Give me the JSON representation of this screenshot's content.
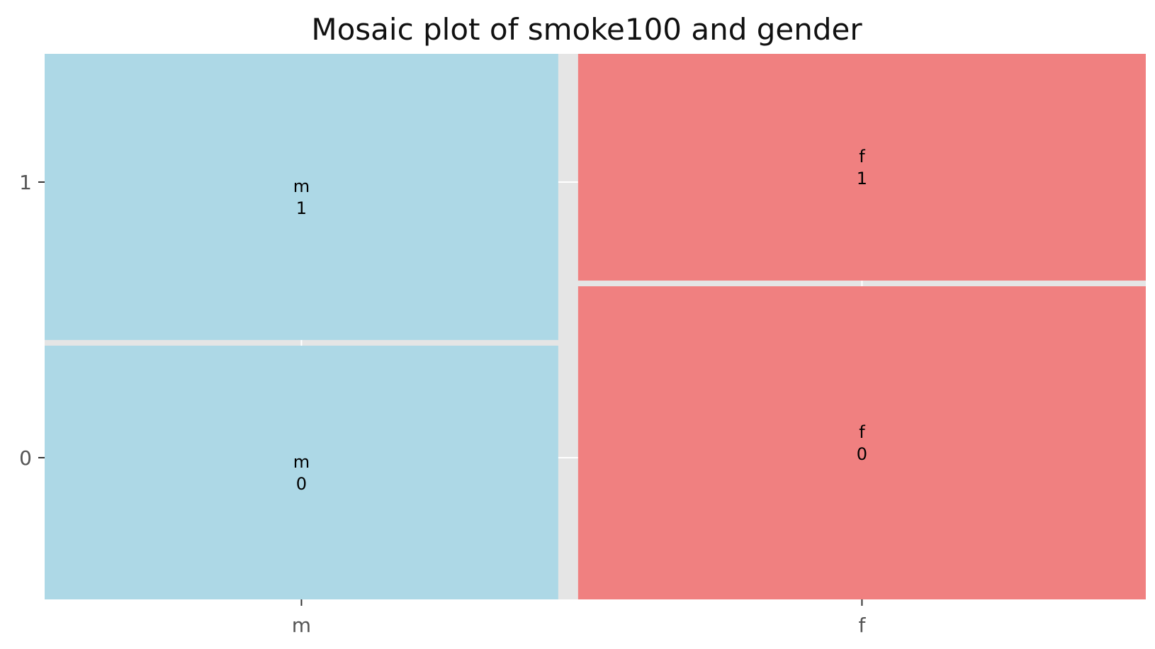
{
  "chart_data": {
    "type": "mosaic",
    "title": "Mosaic plot of smoke100 and gender",
    "xlabel": "",
    "ylabel": "",
    "x_categories": [
      "m",
      "f"
    ],
    "y_categories": [
      "0",
      "1"
    ],
    "x_proportions": [
      0.475,
      0.525
    ],
    "conditional_proportions": [
      {
        "x": "m",
        "values": {
          "0": 0.47,
          "1": 0.53
        }
      },
      {
        "x": "f",
        "values": {
          "0": 0.58,
          "1": 0.42
        }
      }
    ],
    "cells": [
      {
        "x": "m",
        "y": "0",
        "label": "m\n0",
        "color": "#add8e6"
      },
      {
        "x": "m",
        "y": "1",
        "label": "m\n1",
        "color": "#add8e6"
      },
      {
        "x": "f",
        "y": "0",
        "label": "f\n0",
        "color": "#f08080"
      },
      {
        "x": "f",
        "y": "1",
        "label": "f\n1",
        "color": "#f08080"
      }
    ],
    "grid": true,
    "background_color": "#e5e5e5",
    "grid_color": "#ffffff"
  }
}
